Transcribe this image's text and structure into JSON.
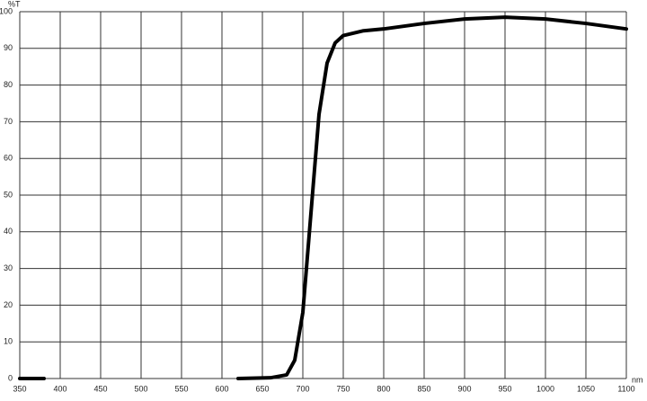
{
  "chart_data": {
    "type": "line",
    "y_label": "%T",
    "x_label": "nm",
    "x": [
      350,
      380,
      500,
      620,
      660,
      680,
      690,
      700,
      710,
      720,
      730,
      740,
      750,
      775,
      800,
      850,
      900,
      950,
      1000,
      1050,
      1100
    ],
    "series": [
      {
        "color": "#000000",
        "values": [
          0,
          0,
          null,
          0,
          0.2,
          1,
          5,
          18,
          45,
          72,
          86,
          91.5,
          93.5,
          94.8,
          95.3,
          96.8,
          98,
          98.5,
          98,
          96.8,
          95.3
        ]
      }
    ],
    "xlim": [
      350,
      1100
    ],
    "xticks": [
      350,
      400,
      450,
      500,
      550,
      600,
      650,
      700,
      750,
      800,
      850,
      900,
      950,
      1000,
      1050,
      1100
    ],
    "ylim": [
      0,
      100
    ],
    "yticks": [
      0,
      10,
      20,
      30,
      40,
      50,
      60,
      70,
      80,
      90,
      100
    ],
    "grid": true
  }
}
